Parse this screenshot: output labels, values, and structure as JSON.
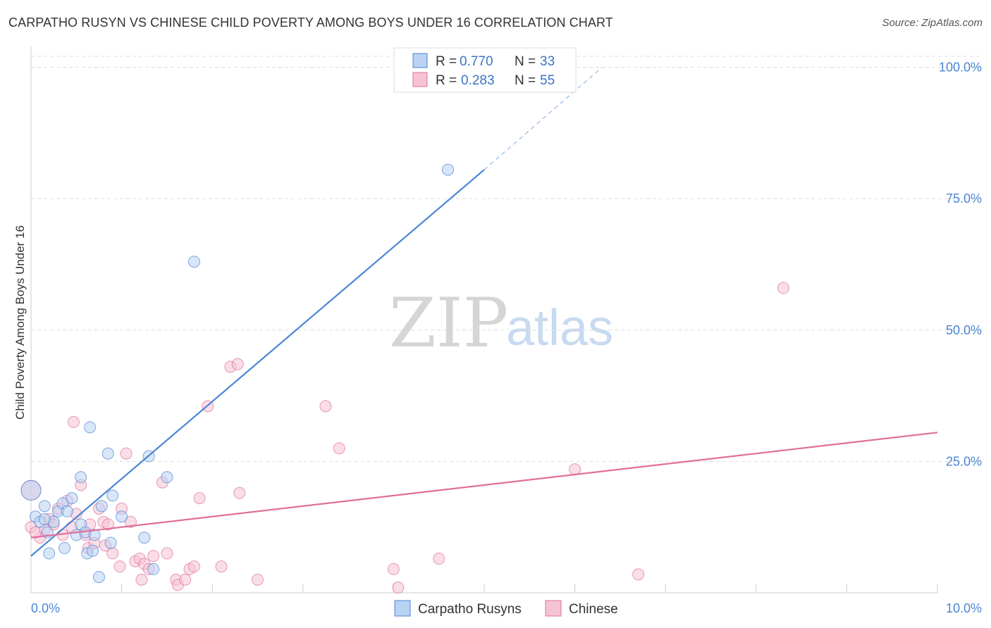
{
  "title": "CARPATHO RUSYN VS CHINESE CHILD POVERTY AMONG BOYS UNDER 16 CORRELATION CHART",
  "source": "Source: ZipAtlas.com",
  "watermark": {
    "zip": "ZIP",
    "atlas": "atlas"
  },
  "colors": {
    "blue": "#4a86d4",
    "blue_fill": "#b9d2f2",
    "pink": "#e0709a",
    "pink_fill": "#f6c3d4",
    "grid": "#dddddd",
    "tick": "#4a86d4"
  },
  "legend": {
    "rows": [
      {
        "r_label": "R = ",
        "r_value": "0.770",
        "n_label": "N = ",
        "n_value": "33",
        "series": "blue"
      },
      {
        "r_label": "R = ",
        "r_value": "0.283",
        "n_label": "N = ",
        "n_value": "55",
        "series": "pink"
      }
    ]
  },
  "chart_data": {
    "type": "scatter",
    "title": "CARPATHO RUSYN VS CHINESE CHILD POVERTY AMONG BOYS UNDER 16 CORRELATION CHART",
    "xlabel": "",
    "ylabel": "Child Poverty Among Boys Under 16",
    "xlim": [
      0,
      10
    ],
    "ylim": [
      0,
      100
    ],
    "x_tick_labels": [
      {
        "value": 0,
        "label": "0.0%"
      },
      {
        "value": 10,
        "label": "10.0%"
      }
    ],
    "y_tick_labels": [
      {
        "value": 25,
        "label": "25.0%"
      },
      {
        "value": 50,
        "label": "50.0%"
      },
      {
        "value": 75,
        "label": "75.0%"
      },
      {
        "value": 100,
        "label": "100.0%"
      }
    ],
    "grid": true,
    "legend_position": "top-center",
    "series": [
      {
        "name": "Carpatho Rusyns",
        "color": "blue",
        "R": 0.77,
        "N": 33,
        "trend": {
          "x0": 0,
          "y0": 7,
          "x1": 5,
          "y1": 80.5,
          "dash_to_x": 6.3,
          "dash_to_y": 100
        },
        "points": [
          [
            0.0,
            19.5,
            14
          ],
          [
            0.05,
            14.5,
            8
          ],
          [
            0.1,
            13.5,
            8
          ],
          [
            0.15,
            16.5,
            8
          ],
          [
            0.18,
            11.5,
            8
          ],
          [
            0.2,
            7.5,
            8
          ],
          [
            0.25,
            13.5,
            8
          ],
          [
            0.3,
            15.5,
            8
          ],
          [
            0.35,
            17.0,
            8
          ],
          [
            0.37,
            8.5,
            8
          ],
          [
            0.4,
            15.5,
            8
          ],
          [
            0.45,
            18.0,
            8
          ],
          [
            0.5,
            11.0,
            8
          ],
          [
            0.55,
            13.0,
            8
          ],
          [
            0.55,
            22.0,
            8
          ],
          [
            0.6,
            11.5,
            8
          ],
          [
            0.62,
            7.5,
            8
          ],
          [
            0.65,
            31.5,
            8
          ],
          [
            0.68,
            8.0,
            8
          ],
          [
            0.7,
            11.0,
            8
          ],
          [
            0.75,
            3.0,
            8
          ],
          [
            0.78,
            16.5,
            8
          ],
          [
            0.85,
            26.5,
            8
          ],
          [
            0.88,
            9.5,
            8
          ],
          [
            0.9,
            18.5,
            8
          ],
          [
            1.0,
            14.5,
            8
          ],
          [
            1.25,
            10.5,
            8
          ],
          [
            1.3,
            26.0,
            8
          ],
          [
            1.35,
            4.5,
            8
          ],
          [
            1.5,
            22.0,
            8
          ],
          [
            1.8,
            63.0,
            8
          ],
          [
            4.6,
            80.5,
            8
          ],
          [
            0.15,
            14.0,
            8
          ]
        ]
      },
      {
        "name": "Chinese",
        "color": "pink",
        "R": 0.283,
        "N": 55,
        "trend": {
          "x0": 0,
          "y0": 10.5,
          "x1": 10,
          "y1": 30.5
        },
        "points": [
          [
            0.0,
            19.5,
            14
          ],
          [
            0.0,
            12.5,
            8
          ],
          [
            0.1,
            10.5,
            8
          ],
          [
            0.2,
            14.0,
            8
          ],
          [
            0.25,
            13.0,
            8
          ],
          [
            0.3,
            16.0,
            8
          ],
          [
            0.35,
            11.0,
            8
          ],
          [
            0.4,
            17.5,
            8
          ],
          [
            0.45,
            12.5,
            8
          ],
          [
            0.47,
            32.5,
            8
          ],
          [
            0.5,
            15.0,
            8
          ],
          [
            0.55,
            20.5,
            8
          ],
          [
            0.6,
            11.0,
            8
          ],
          [
            0.63,
            8.5,
            8
          ],
          [
            0.65,
            13.0,
            8
          ],
          [
            0.7,
            9.5,
            8
          ],
          [
            0.75,
            16.0,
            8
          ],
          [
            0.8,
            13.5,
            8
          ],
          [
            0.82,
            9.0,
            8
          ],
          [
            0.85,
            13.0,
            8
          ],
          [
            0.9,
            7.5,
            8
          ],
          [
            0.98,
            5.0,
            8
          ],
          [
            1.0,
            16.0,
            8
          ],
          [
            1.05,
            26.5,
            8
          ],
          [
            1.1,
            13.5,
            8
          ],
          [
            1.15,
            6.0,
            8
          ],
          [
            1.2,
            6.5,
            8
          ],
          [
            1.22,
            2.5,
            8
          ],
          [
            1.25,
            5.5,
            8
          ],
          [
            1.3,
            4.5,
            8
          ],
          [
            1.35,
            7.0,
            8
          ],
          [
            1.45,
            21.0,
            8
          ],
          [
            1.5,
            7.5,
            8
          ],
          [
            1.6,
            2.5,
            8
          ],
          [
            1.62,
            1.5,
            8
          ],
          [
            1.7,
            2.5,
            8
          ],
          [
            1.75,
            4.5,
            8
          ],
          [
            1.8,
            5.0,
            8
          ],
          [
            1.86,
            18.0,
            8
          ],
          [
            1.95,
            35.5,
            8
          ],
          [
            2.1,
            5.0,
            8
          ],
          [
            2.2,
            43.0,
            8
          ],
          [
            2.28,
            43.5,
            8
          ],
          [
            2.3,
            19.0,
            8
          ],
          [
            2.5,
            2.5,
            8
          ],
          [
            3.25,
            35.5,
            8
          ],
          [
            3.4,
            27.5,
            8
          ],
          [
            4.0,
            4.5,
            8
          ],
          [
            4.05,
            1.0,
            8
          ],
          [
            4.5,
            6.5,
            8
          ],
          [
            6.0,
            23.5,
            8
          ],
          [
            6.7,
            3.5,
            8
          ],
          [
            8.3,
            58.0,
            8
          ],
          [
            0.05,
            11.5,
            8
          ],
          [
            0.15,
            12.0,
            8
          ]
        ]
      }
    ]
  },
  "bottom_legend": [
    {
      "label": "Carpatho Rusyns",
      "series": "blue"
    },
    {
      "label": "Chinese",
      "series": "pink"
    }
  ]
}
